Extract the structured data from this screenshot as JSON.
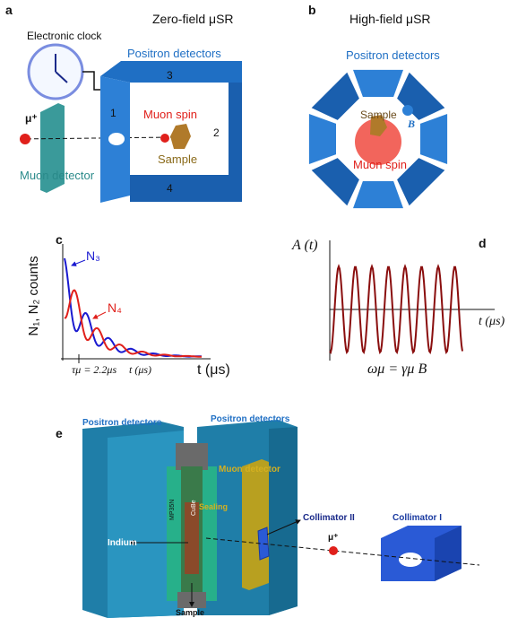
{
  "panel_a": {
    "label": "a",
    "title": "Zero-field μSR",
    "clock": "Electronic clock",
    "detectors": "Positron detectors",
    "numbers": [
      "3",
      "1",
      "2",
      "4"
    ],
    "muon": "μ⁺",
    "spin": "Muon spin",
    "sample": "Sample",
    "muon_detector": "Muon detector"
  },
  "panel_b": {
    "label": "b",
    "title": "High-field μSR",
    "detectors": "Positron detectors",
    "sample": "Sample",
    "field": "B",
    "spin": "Muon spin"
  },
  "panel_c": {
    "label": "c",
    "y_label": "N₁, N₂ counts",
    "curve_1": "N₃",
    "curve_2": "N₄",
    "lifetime": "τμ = 2.2μs",
    "x_label_small": "t (μs)",
    "x_label": "t (μs)"
  },
  "panel_d": {
    "label": "d",
    "y_label": "A (t)",
    "x_label": "t (μs)",
    "formula": "ωμ = γμ B"
  },
  "panel_e": {
    "label": "e",
    "detectors_left": "Positron detectors",
    "detectors_right": "Positron detectors",
    "muon_detector": "Muon detector",
    "collimator_2": "Collimator II",
    "collimator_1": "Collimator I",
    "muon": "μ⁺",
    "indium": "Indium",
    "sample": "Sample",
    "mp35n": "MP35N",
    "cube": "CuBe",
    "sealing": "Sealing"
  }
}
